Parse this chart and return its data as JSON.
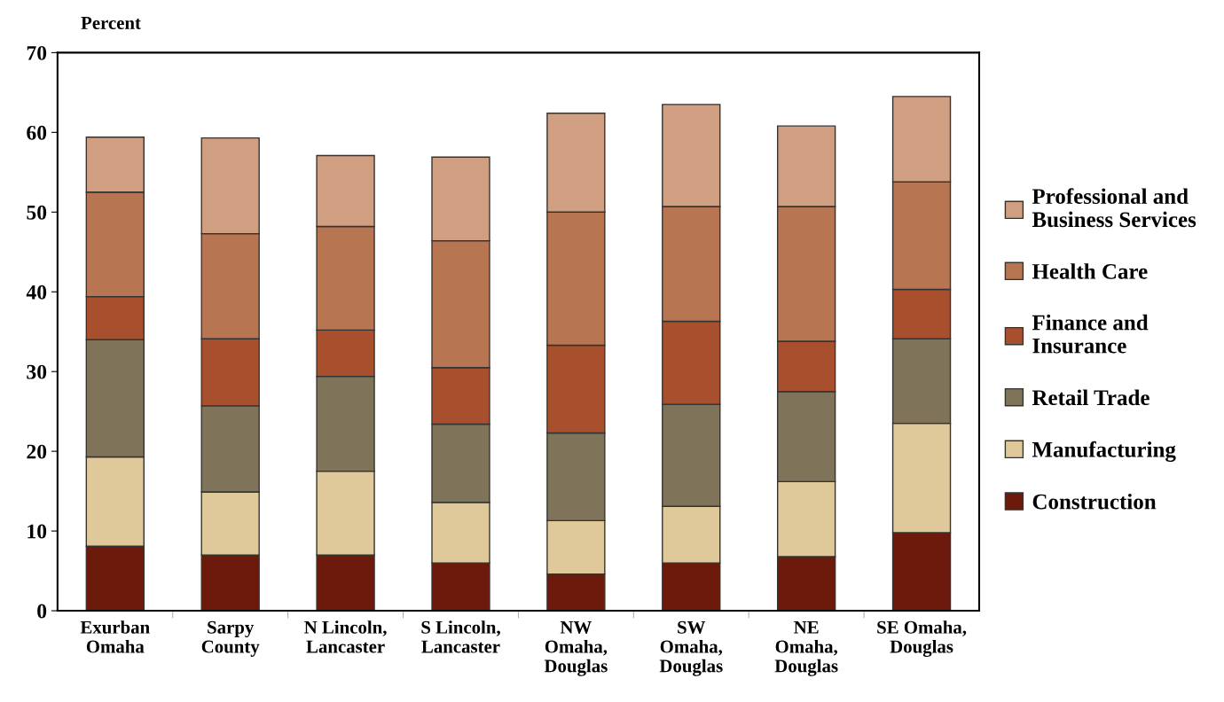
{
  "chart_data": {
    "type": "bar",
    "stacked": true,
    "ylabel": "Percent",
    "categories": [
      "Exurban\nOmaha",
      "Sarpy\nCounty",
      "N Lincoln,\nLancaster",
      "S Lincoln,\nLancaster",
      "NW\nOmaha,\nDouglas",
      "SW\nOmaha,\nDouglas",
      "NE\nOmaha,\nDouglas",
      "SE Omaha,\nDouglas"
    ],
    "series": [
      {
        "name": "Construction",
        "color": "#6b1a0c",
        "values": [
          8.1,
          7.0,
          7.0,
          6.0,
          4.6,
          6.0,
          6.8,
          9.8
        ]
      },
      {
        "name": "Manufacturing",
        "color": "#dfc99b",
        "values": [
          11.2,
          7.9,
          10.5,
          7.6,
          6.7,
          7.1,
          9.4,
          13.7
        ]
      },
      {
        "name": "Retail Trade",
        "color": "#7f735a",
        "values": [
          14.7,
          10.8,
          11.9,
          9.8,
          11.0,
          12.8,
          11.3,
          10.6
        ]
      },
      {
        "name": "Finance and\nInsurance",
        "color": "#a8502e",
        "values": [
          5.4,
          8.4,
          5.8,
          7.1,
          11.0,
          10.4,
          6.3,
          6.2
        ]
      },
      {
        "name": "Health Care",
        "color": "#b87552",
        "values": [
          13.1,
          13.2,
          13.0,
          15.9,
          16.7,
          14.4,
          16.9,
          13.5
        ]
      },
      {
        "name": "Professional and\nBusiness Services",
        "color": "#d09e80",
        "values": [
          6.9,
          12.0,
          8.9,
          10.5,
          12.4,
          12.8,
          10.1,
          10.7
        ]
      }
    ],
    "ylim": [
      0,
      70
    ],
    "yticks": [
      0,
      10,
      20,
      30,
      40,
      50,
      60,
      70
    ],
    "grid": false,
    "legend": "right"
  }
}
